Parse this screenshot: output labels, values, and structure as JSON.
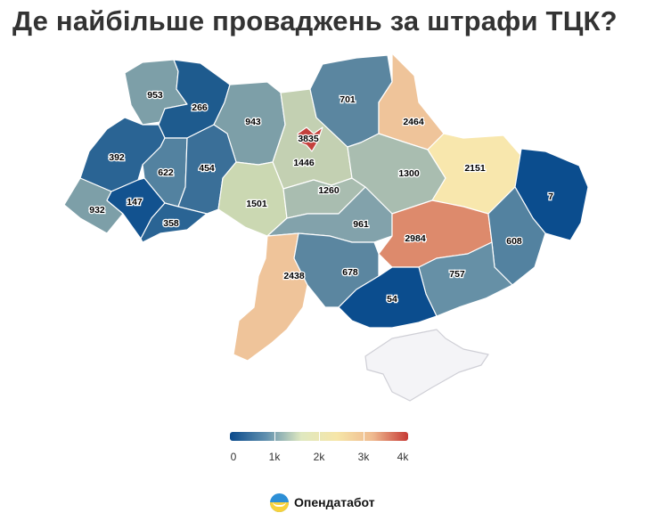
{
  "title": "Де найбільше проваджень за штрафи ТЦК?",
  "legend": {
    "gradient_colors": [
      "#0a4a8c",
      "#5f8fae",
      "#dfe8c0",
      "#f6e6a8",
      "#efba8f",
      "#c63a35"
    ],
    "min": 0,
    "max": 4000,
    "labels": [
      {
        "value": 0,
        "text": "0"
      },
      {
        "value": 1000,
        "text": "1k"
      },
      {
        "value": 2000,
        "text": "2k"
      },
      {
        "value": 3000,
        "text": "3k"
      },
      {
        "value": 4000,
        "text": "4k"
      }
    ]
  },
  "regions": [
    {
      "id": "volyn",
      "value": 953,
      "label": "953",
      "color": "#7d9fa8"
    },
    {
      "id": "rivne",
      "value": 266,
      "label": "266",
      "color": "#1e5b8e"
    },
    {
      "id": "zhytomyr",
      "value": 943,
      "label": "943",
      "color": "#7d9fa8"
    },
    {
      "id": "kyiv-city",
      "value": 3835,
      "label": "3835",
      "color": "#c4403c"
    },
    {
      "id": "kyiv-oblast",
      "value": 1446,
      "label": "1446",
      "color": "#c3d0b2"
    },
    {
      "id": "chernihiv",
      "value": 701,
      "label": "701",
      "color": "#5b86a0"
    },
    {
      "id": "sumy",
      "value": 2464,
      "label": "2464",
      "color": "#efc49a"
    },
    {
      "id": "lviv",
      "value": 392,
      "label": "392",
      "color": "#2a6494"
    },
    {
      "id": "ternopil",
      "value": 622,
      "label": "622",
      "color": "#5382a0"
    },
    {
      "id": "khmelnytskyi",
      "value": 454,
      "label": "454",
      "color": "#3a6f98"
    },
    {
      "id": "vinnytsia",
      "value": 1501,
      "label": "1501",
      "color": "#cbd8b2"
    },
    {
      "id": "cherkasy",
      "value": 1260,
      "label": "1260",
      "color": "#a9bdb0"
    },
    {
      "id": "poltava",
      "value": 1300,
      "label": "1300",
      "color": "#a9bdb0"
    },
    {
      "id": "kharkiv",
      "value": 2151,
      "label": "2151",
      "color": "#f8e7ad"
    },
    {
      "id": "luhansk",
      "value": 7,
      "label": "7",
      "color": "#0b4d8e"
    },
    {
      "id": "zakarpattia",
      "value": 932,
      "label": "932",
      "color": "#7d9fa8"
    },
    {
      "id": "ivano-frankivsk",
      "value": 147,
      "label": "147",
      "color": "#12528f"
    },
    {
      "id": "chernivtsi",
      "value": 358,
      "label": "358",
      "color": "#2a6494"
    },
    {
      "id": "kirovohrad",
      "value": 961,
      "label": "961",
      "color": "#82a2ab"
    },
    {
      "id": "dnipropetrovsk",
      "value": 2984,
      "label": "2984",
      "color": "#dd8a6c"
    },
    {
      "id": "donetsk",
      "value": 608,
      "label": "608",
      "color": "#5382a0"
    },
    {
      "id": "odesa",
      "value": 2438,
      "label": "2438",
      "color": "#efc49a"
    },
    {
      "id": "mykolaiv",
      "value": 678,
      "label": "678",
      "color": "#5b86a0"
    },
    {
      "id": "zaporizhzhia",
      "value": 757,
      "label": "757",
      "color": "#6690a6"
    },
    {
      "id": "kherson",
      "value": 54,
      "label": "54",
      "color": "#0b4d8e"
    },
    {
      "id": "crimea",
      "value": null,
      "label": "",
      "color": "#f4f4f7"
    }
  ],
  "brand": {
    "name": "Опендатабот"
  }
}
